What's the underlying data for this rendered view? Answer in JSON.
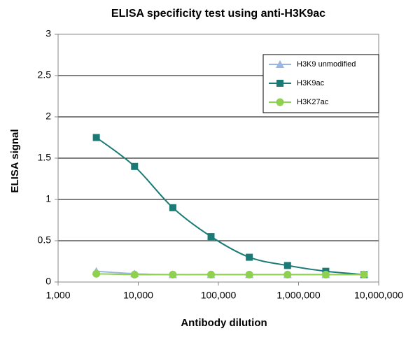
{
  "chart_data": {
    "type": "line",
    "title": "ELISA specificity test using anti-H3K9ac",
    "x_label": "Antibody  dilution",
    "y_label": "ELISA signal",
    "x": [
      3000,
      9000,
      27000,
      81000,
      243000,
      729000,
      2187000,
      6561000
    ],
    "x_scale": "log",
    "xlim": [
      1000,
      10000000
    ],
    "xticks": [
      {
        "value": 1000,
        "label": "1,000"
      },
      {
        "value": 10000,
        "label": "10,000"
      },
      {
        "value": 100000,
        "label": "100,000"
      },
      {
        "value": 1000000,
        "label": "1,000,000"
      },
      {
        "value": 10000000,
        "label": "10,000,000"
      }
    ],
    "ylim": [
      0,
      3
    ],
    "yticks": [
      0,
      0.5,
      1,
      1.5,
      2,
      2.5,
      3
    ],
    "grid": true,
    "legend": "upper-right",
    "series": [
      {
        "name": "H3K9 unmodified",
        "color": "#9bb7e0",
        "marker": "triangle",
        "values": [
          0.13,
          0.1,
          0.09,
          0.09,
          0.09,
          0.09,
          0.09,
          0.09
        ]
      },
      {
        "name": "H3K9ac",
        "color": "#1a7a75",
        "marker": "square",
        "values": [
          1.75,
          1.4,
          0.9,
          0.55,
          0.3,
          0.2,
          0.13,
          0.09
        ]
      },
      {
        "name": "H3K27ac",
        "color": "#8fd14f",
        "marker": "circle",
        "values": [
          0.1,
          0.09,
          0.09,
          0.09,
          0.09,
          0.09,
          0.09,
          0.09
        ]
      }
    ]
  }
}
